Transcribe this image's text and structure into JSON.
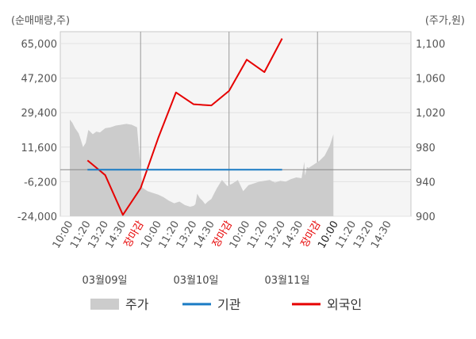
{
  "chart_data": {
    "type": "line",
    "left_axis": {
      "unit": "(순매매량,주)",
      "ticks": [
        "65,000",
        "47,200",
        "29,400",
        "11,600",
        "-6,200",
        "-24,000"
      ],
      "range": [
        -24000,
        65000
      ]
    },
    "right_axis": {
      "unit": "(주가,원)",
      "ticks": [
        "1,100",
        "1,060",
        "1,020",
        "980",
        "940",
        "900"
      ],
      "range": [
        900,
        1100
      ]
    },
    "x_tick_labels": [
      {
        "label": "10:00",
        "style": "normal"
      },
      {
        "label": "11:20",
        "style": "normal"
      },
      {
        "label": "13:20",
        "style": "normal"
      },
      {
        "label": "14:30",
        "style": "normal"
      },
      {
        "label": "장마감",
        "style": "close"
      },
      {
        "label": "10:00",
        "style": "normal"
      },
      {
        "label": "11:20",
        "style": "normal"
      },
      {
        "label": "13:20",
        "style": "normal"
      },
      {
        "label": "14:30",
        "style": "normal"
      },
      {
        "label": "장마감",
        "style": "close"
      },
      {
        "label": "10:00",
        "style": "normal"
      },
      {
        "label": "11:20",
        "style": "normal"
      },
      {
        "label": "13:20",
        "style": "normal"
      },
      {
        "label": "14:30",
        "style": "normal"
      },
      {
        "label": "장마감",
        "style": "close"
      },
      {
        "label": "10:00",
        "style": "dark"
      },
      {
        "label": "11:20",
        "style": "normal"
      },
      {
        "label": "13:20",
        "style": "normal"
      },
      {
        "label": "14:30",
        "style": "normal"
      }
    ],
    "dates": [
      "03월09일",
      "03월10일",
      "03월11일"
    ],
    "legend": [
      {
        "name": "주가",
        "color": "#cccccc",
        "kind": "area"
      },
      {
        "name": "기관",
        "color": "#1a7bc4",
        "kind": "line"
      },
      {
        "name": "외국인",
        "color": "#e60000",
        "kind": "line"
      }
    ],
    "series": [
      {
        "name": "외국인",
        "color": "#e60000",
        "axis": "left",
        "x": [
          1,
          2,
          3,
          4,
          5,
          6,
          7,
          8,
          9,
          10,
          11,
          12
        ],
        "values": [
          4800,
          -2800,
          -23300,
          -9600,
          16400,
          39800,
          33700,
          33100,
          40600,
          56700,
          50300,
          67600
        ]
      },
      {
        "name": "기관",
        "color": "#1a7bc4",
        "axis": "left",
        "x": [
          1,
          12
        ],
        "values": [
          0,
          0
        ]
      },
      {
        "name": "주가",
        "color": "#cccccc",
        "axis": "right",
        "x": [
          0,
          0.15,
          0.3,
          0.5,
          0.6,
          0.75,
          0.9,
          1.05,
          1.3,
          1.5,
          1.7,
          2.0,
          2.3,
          2.6,
          2.9,
          3.2,
          3.5,
          3.8,
          4.1,
          4.4,
          4.7,
          5.0,
          5.3,
          5.6,
          5.9,
          6.2,
          6.5,
          6.8,
          7.0,
          7.1,
          7.2,
          7.35,
          7.5,
          7.65,
          7.8,
          8.0,
          8.3,
          8.6,
          8.9,
          9.2,
          9.5,
          9.8,
          10.1,
          10.4,
          10.7,
          11.0,
          11.3,
          11.6,
          11.9,
          12.2,
          12.5,
          12.8,
          13.1,
          13.25,
          13.3,
          13.4,
          13.5,
          13.8,
          14.1,
          14.4,
          14.7,
          14.9
        ],
        "values": [
          1012,
          1008,
          1002,
          996,
          990,
          980,
          985,
          1000,
          995,
          998,
          997,
          1002,
          1003,
          1005,
          1006,
          1007,
          1006,
          1003,
          933,
          929,
          927,
          925,
          922,
          918,
          915,
          917,
          913,
          911,
          912,
          914,
          926,
          921,
          918,
          914,
          917,
          920,
          932,
          942,
          935,
          938,
          942,
          929,
          936,
          938,
          940,
          941,
          942,
          939,
          941,
          940,
          943,
          945,
          944,
          963,
          947,
          957,
          956,
          960,
          964,
          970,
          982,
          995
        ]
      }
    ]
  }
}
